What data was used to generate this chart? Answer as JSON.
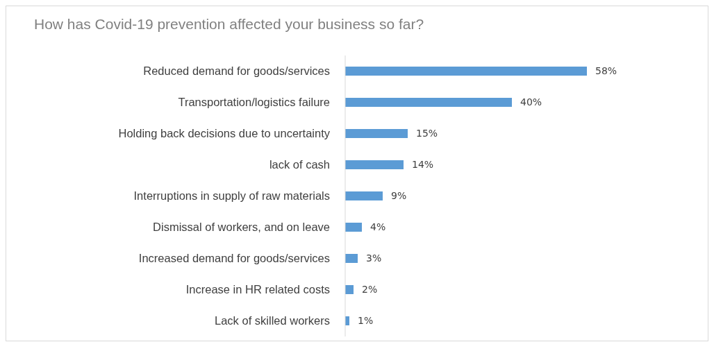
{
  "chart_data": {
    "type": "bar",
    "orientation": "horizontal",
    "title": "How has Covid-19 prevention affected your business so far?",
    "categories": [
      "Reduced demand for goods/services",
      "Transportation/logistics failure",
      "Holding back decisions due to uncertainty",
      "lack of cash",
      "Interruptions in supply of raw materials",
      "Dismissal of workers, and on leave",
      "Increased demand for goods/services",
      "Increase in HR related costs",
      "Lack of skilled workers"
    ],
    "values": [
      58,
      40,
      15,
      14,
      9,
      4,
      3,
      2,
      1
    ],
    "value_labels": [
      "58%",
      "40%",
      "15%",
      "14%",
      "9%",
      "4%",
      "3%",
      "2%",
      "1%"
    ],
    "color": "#5b9bd5",
    "xlim": [
      0,
      87
    ],
    "tick_labels": "y"
  }
}
